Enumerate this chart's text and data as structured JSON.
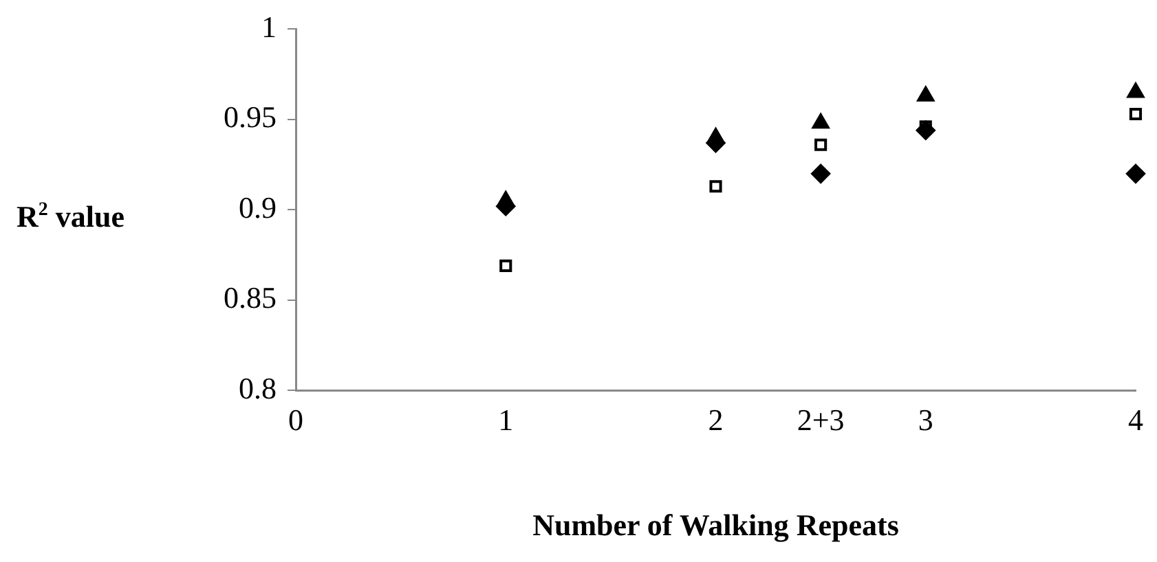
{
  "chart_data": {
    "type": "scatter",
    "xlabel": "Number of Walking Repeats",
    "ylabel": "R$^{2}$ value",
    "x": [
      1,
      2,
      2.5,
      3,
      4
    ],
    "series": [
      {
        "color": "#000000",
        "marker": "diamond",
        "values": [
          0.902,
          0.937,
          0.92,
          0.944,
          0.92
        ]
      },
      {
        "color": "#000000",
        "marker": "square",
        "values": [
          0.869,
          0.913,
          0.936,
          0.946,
          0.953
        ]
      },
      {
        "color": "#000000",
        "marker": "triangle",
        "values": [
          0.905,
          0.94,
          0.948,
          0.963,
          0.965
        ]
      }
    ],
    "xlim": [
      0,
      4
    ],
    "xticks": [
      0,
      1,
      2,
      {
        "value": 2.5,
        "label": "2+3"
      },
      3,
      4
    ],
    "ylim": [
      0.8,
      1
    ],
    "yticks": [
      0.8,
      0.85,
      0.9,
      0.95,
      1
    ],
    "grid": false,
    "legend": false
  }
}
